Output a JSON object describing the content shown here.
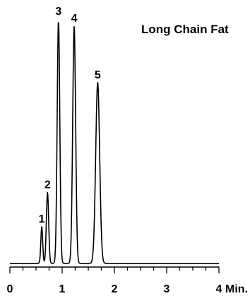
{
  "chart_data": {
    "type": "line",
    "title": "Long Chain Fat",
    "x_unit_label": "Min.",
    "xlim": [
      0,
      4
    ],
    "ylim": [
      0,
      100
    ],
    "x_ticks": [
      0,
      1,
      2,
      3,
      4
    ],
    "x_tick_labels": [
      "0",
      "1",
      "2",
      "3",
      "4"
    ],
    "x_minor_tick_step": 0.25,
    "grid": false,
    "legend": "none",
    "baseline": 1.5,
    "line_color": "#000000",
    "peaks": [
      {
        "label": "1",
        "x": 0.61,
        "height": 15,
        "width": 0.018
      },
      {
        "label": "2",
        "x": 0.72,
        "height": 29,
        "width": 0.022
      },
      {
        "label": "3",
        "x": 0.93,
        "height": 100,
        "width": 0.025
      },
      {
        "label": "4",
        "x": 1.23,
        "height": 97,
        "width": 0.028
      },
      {
        "label": "5",
        "x": 1.68,
        "height": 74,
        "width": 0.038
      }
    ]
  }
}
